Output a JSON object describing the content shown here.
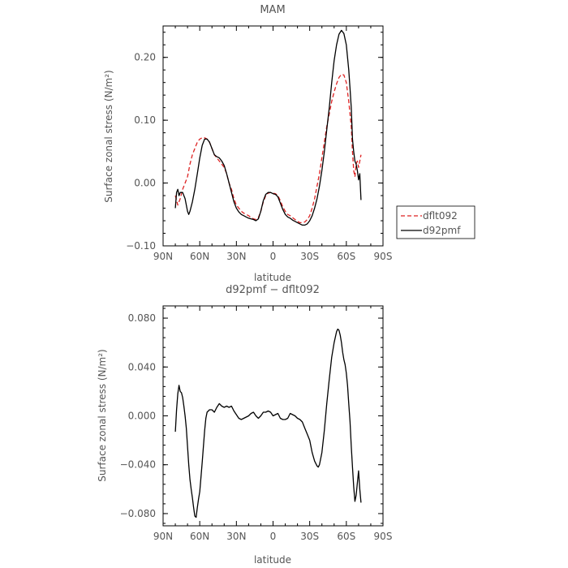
{
  "chart_data": [
    {
      "type": "line",
      "title": "MAM",
      "xlabel": "latitude",
      "ylabel": "Surface zonal stress (N/m²)",
      "x_ticks": [
        90,
        60,
        30,
        0,
        -30,
        -60,
        -90
      ],
      "x_tick_labels": [
        "90N",
        "60N",
        "30N",
        "0",
        "30S",
        "60S",
        "90S"
      ],
      "xlim": [
        90,
        -90
      ],
      "y_ticks": [
        -0.1,
        0.0,
        0.1,
        0.2
      ],
      "y_tick_labels": [
        "−0.10",
        "0.00",
        "0.10",
        "0.20"
      ],
      "ylim": [
        -0.1,
        0.25
      ],
      "legend_position": "right",
      "grid": false,
      "series": [
        {
          "name": "dflt092",
          "color": "#dd2222",
          "dash": "dashed",
          "points": [
            [
              80,
              -0.02
            ],
            [
              78,
              -0.035
            ],
            [
              76,
              -0.025
            ],
            [
              74,
              -0.01
            ],
            [
              72,
              0.0
            ],
            [
              70,
              0.01
            ],
            [
              68,
              0.03
            ],
            [
              66,
              0.045
            ],
            [
              64,
              0.055
            ],
            [
              62,
              0.065
            ],
            [
              60,
              0.07
            ],
            [
              58,
              0.072
            ],
            [
              56,
              0.072
            ],
            [
              54,
              0.07
            ],
            [
              52,
              0.065
            ],
            [
              50,
              0.055
            ],
            [
              48,
              0.045
            ],
            [
              46,
              0.04
            ],
            [
              44,
              0.035
            ],
            [
              42,
              0.03
            ],
            [
              40,
              0.025
            ],
            [
              38,
              0.015
            ],
            [
              36,
              0.0
            ],
            [
              34,
              -0.01
            ],
            [
              32,
              -0.025
            ],
            [
              30,
              -0.035
            ],
            [
              28,
              -0.04
            ],
            [
              26,
              -0.045
            ],
            [
              24,
              -0.048
            ],
            [
              22,
              -0.05
            ],
            [
              20,
              -0.052
            ],
            [
              18,
              -0.055
            ],
            [
              16,
              -0.057
            ],
            [
              14,
              -0.058
            ],
            [
              12,
              -0.055
            ],
            [
              10,
              -0.045
            ],
            [
              8,
              -0.03
            ],
            [
              6,
              -0.02
            ],
            [
              4,
              -0.016
            ],
            [
              2,
              -0.015
            ],
            [
              0,
              -0.016
            ],
            [
              -2,
              -0.017
            ],
            [
              -4,
              -0.02
            ],
            [
              -6,
              -0.028
            ],
            [
              -8,
              -0.038
            ],
            [
              -10,
              -0.045
            ],
            [
              -12,
              -0.05
            ],
            [
              -14,
              -0.052
            ],
            [
              -16,
              -0.055
            ],
            [
              -18,
              -0.058
            ],
            [
              -20,
              -0.061
            ],
            [
              -22,
              -0.063
            ],
            [
              -24,
              -0.063
            ],
            [
              -26,
              -0.062
            ],
            [
              -28,
              -0.058
            ],
            [
              -30,
              -0.052
            ],
            [
              -32,
              -0.04
            ],
            [
              -34,
              -0.025
            ],
            [
              -36,
              -0.005
            ],
            [
              -38,
              0.015
            ],
            [
              -40,
              0.04
            ],
            [
              -42,
              0.065
            ],
            [
              -44,
              0.09
            ],
            [
              -46,
              0.11
            ],
            [
              -48,
              0.13
            ],
            [
              -50,
              0.145
            ],
            [
              -52,
              0.158
            ],
            [
              -54,
              0.168
            ],
            [
              -56,
              0.173
            ],
            [
              -58,
              0.172
            ],
            [
              -60,
              0.16
            ],
            [
              -62,
              0.13
            ],
            [
              -64,
              0.09
            ],
            [
              -65,
              0.05
            ],
            [
              -66,
              0.02
            ],
            [
              -67,
              0.01
            ],
            [
              -68,
              0.03
            ],
            [
              -69,
              0.035
            ],
            [
              -70,
              0.025
            ],
            [
              -71,
              0.035
            ],
            [
              -72,
              0.045
            ]
          ]
        },
        {
          "name": "d92pmf",
          "color": "#000000",
          "dash": "solid",
          "points": [
            [
              80,
              -0.04
            ],
            [
              79,
              -0.015
            ],
            [
              78,
              -0.01
            ],
            [
              77,
              -0.02
            ],
            [
              76,
              -0.015
            ],
            [
              74,
              -0.015
            ],
            [
              72,
              -0.025
            ],
            [
              70,
              -0.045
            ],
            [
              69,
              -0.05
            ],
            [
              68,
              -0.045
            ],
            [
              66,
              -0.03
            ],
            [
              64,
              -0.01
            ],
            [
              62,
              0.015
            ],
            [
              60,
              0.04
            ],
            [
              58,
              0.06
            ],
            [
              56,
              0.07
            ],
            [
              54,
              0.07
            ],
            [
              52,
              0.065
            ],
            [
              50,
              0.055
            ],
            [
              48,
              0.045
            ],
            [
              46,
              0.042
            ],
            [
              44,
              0.04
            ],
            [
              42,
              0.035
            ],
            [
              40,
              0.028
            ],
            [
              38,
              0.015
            ],
            [
              36,
              0.0
            ],
            [
              34,
              -0.015
            ],
            [
              32,
              -0.03
            ],
            [
              30,
              -0.04
            ],
            [
              28,
              -0.046
            ],
            [
              26,
              -0.05
            ],
            [
              24,
              -0.052
            ],
            [
              22,
              -0.054
            ],
            [
              20,
              -0.056
            ],
            [
              18,
              -0.057
            ],
            [
              16,
              -0.058
            ],
            [
              14,
              -0.06
            ],
            [
              12,
              -0.057
            ],
            [
              10,
              -0.045
            ],
            [
              8,
              -0.028
            ],
            [
              6,
              -0.018
            ],
            [
              4,
              -0.015
            ],
            [
              2,
              -0.015
            ],
            [
              0,
              -0.017
            ],
            [
              -2,
              -0.018
            ],
            [
              -4,
              -0.022
            ],
            [
              -6,
              -0.032
            ],
            [
              -8,
              -0.042
            ],
            [
              -10,
              -0.05
            ],
            [
              -12,
              -0.054
            ],
            [
              -14,
              -0.056
            ],
            [
              -16,
              -0.059
            ],
            [
              -18,
              -0.061
            ],
            [
              -20,
              -0.063
            ],
            [
              -22,
              -0.065
            ],
            [
              -24,
              -0.067
            ],
            [
              -26,
              -0.067
            ],
            [
              -28,
              -0.065
            ],
            [
              -30,
              -0.06
            ],
            [
              -32,
              -0.052
            ],
            [
              -34,
              -0.04
            ],
            [
              -36,
              -0.025
            ],
            [
              -38,
              -0.005
            ],
            [
              -40,
              0.02
            ],
            [
              -42,
              0.05
            ],
            [
              -44,
              0.085
            ],
            [
              -46,
              0.12
            ],
            [
              -48,
              0.16
            ],
            [
              -50,
              0.195
            ],
            [
              -52,
              0.22
            ],
            [
              -54,
              0.237
            ],
            [
              -56,
              0.243
            ],
            [
              -58,
              0.238
            ],
            [
              -60,
              0.22
            ],
            [
              -62,
              0.18
            ],
            [
              -63,
              0.15
            ],
            [
              -64,
              0.12
            ],
            [
              -65,
              0.07
            ],
            [
              -66,
              0.05
            ],
            [
              -67,
              0.035
            ],
            [
              -68,
              0.03
            ],
            [
              -69,
              0.02
            ],
            [
              -70,
              0.005
            ],
            [
              -71,
              0.015
            ],
            [
              -72,
              -0.027
            ]
          ]
        }
      ]
    },
    {
      "type": "line",
      "title": "d92pmf − dflt092",
      "xlabel": "latitude",
      "ylabel": "Surface zonal stress (N/m²)",
      "x_ticks": [
        90,
        60,
        30,
        0,
        -30,
        -60,
        -90
      ],
      "x_tick_labels": [
        "90N",
        "60N",
        "30N",
        "0",
        "30S",
        "60S",
        "90S"
      ],
      "xlim": [
        90,
        -90
      ],
      "y_ticks": [
        -0.08,
        -0.04,
        0.0,
        0.04,
        0.08
      ],
      "y_tick_labels": [
        "−0.080",
        "−0.040",
        "0.000",
        "0.040",
        "0.080"
      ],
      "ylim": [
        -0.09,
        0.09
      ],
      "grid": false,
      "series": [
        {
          "color": "#000000",
          "dash": "solid",
          "points": [
            [
              80,
              -0.013
            ],
            [
              79,
              0.005
            ],
            [
              78,
              0.018
            ],
            [
              77,
              0.025
            ],
            [
              76,
              0.02
            ],
            [
              75,
              0.019
            ],
            [
              74,
              0.015
            ],
            [
              73,
              0.008
            ],
            [
              72,
              0.0
            ],
            [
              71,
              -0.01
            ],
            [
              70,
              -0.025
            ],
            [
              69,
              -0.04
            ],
            [
              68,
              -0.052
            ],
            [
              67,
              -0.06
            ],
            [
              66,
              -0.067
            ],
            [
              65,
              -0.075
            ],
            [
              64,
              -0.082
            ],
            [
              63,
              -0.083
            ],
            [
              62,
              -0.075
            ],
            [
              61,
              -0.068
            ],
            [
              60,
              -0.062
            ],
            [
              59,
              -0.05
            ],
            [
              58,
              -0.038
            ],
            [
              57,
              -0.025
            ],
            [
              56,
              -0.012
            ],
            [
              55,
              -0.002
            ],
            [
              54,
              0.003
            ],
            [
              52,
              0.005
            ],
            [
              50,
              0.005
            ],
            [
              48,
              0.003
            ],
            [
              46,
              0.007
            ],
            [
              44,
              0.01
            ],
            [
              42,
              0.008
            ],
            [
              40,
              0.007
            ],
            [
              38,
              0.008
            ],
            [
              36,
              0.007
            ],
            [
              34,
              0.008
            ],
            [
              32,
              0.004
            ],
            [
              30,
              0.001
            ],
            [
              28,
              -0.002
            ],
            [
              26,
              -0.003
            ],
            [
              24,
              -0.002
            ],
            [
              22,
              -0.001
            ],
            [
              20,
              0.0
            ],
            [
              18,
              0.002
            ],
            [
              16,
              0.003
            ],
            [
              14,
              0.0
            ],
            [
              12,
              -0.002
            ],
            [
              10,
              0.0
            ],
            [
              8,
              0.003
            ],
            [
              6,
              0.003
            ],
            [
              4,
              0.004
            ],
            [
              2,
              0.003
            ],
            [
              0,
              0.0
            ],
            [
              -2,
              0.001
            ],
            [
              -4,
              0.002
            ],
            [
              -6,
              -0.002
            ],
            [
              -8,
              -0.003
            ],
            [
              -10,
              -0.003
            ],
            [
              -12,
              -0.002
            ],
            [
              -14,
              0.002
            ],
            [
              -16,
              0.001
            ],
            [
              -18,
              0.0
            ],
            [
              -20,
              -0.002
            ],
            [
              -22,
              -0.003
            ],
            [
              -24,
              -0.005
            ],
            [
              -26,
              -0.01
            ],
            [
              -28,
              -0.015
            ],
            [
              -30,
              -0.02
            ],
            [
              -32,
              -0.03
            ],
            [
              -34,
              -0.037
            ],
            [
              -36,
              -0.041
            ],
            [
              -37,
              -0.042
            ],
            [
              -38,
              -0.04
            ],
            [
              -40,
              -0.03
            ],
            [
              -42,
              -0.012
            ],
            [
              -44,
              0.01
            ],
            [
              -46,
              0.03
            ],
            [
              -48,
              0.048
            ],
            [
              -50,
              0.06
            ],
            [
              -52,
              0.069
            ],
            [
              -53,
              0.071
            ],
            [
              -54,
              0.07
            ],
            [
              -55,
              0.066
            ],
            [
              -56,
              0.06
            ],
            [
              -57,
              0.052
            ],
            [
              -58,
              0.046
            ],
            [
              -59,
              0.042
            ],
            [
              -60,
              0.035
            ],
            [
              -61,
              0.025
            ],
            [
              -62,
              0.01
            ],
            [
              -63,
              -0.005
            ],
            [
              -64,
              -0.025
            ],
            [
              -65,
              -0.042
            ],
            [
              -66,
              -0.058
            ],
            [
              -67,
              -0.07
            ],
            [
              -68,
              -0.065
            ],
            [
              -69,
              -0.055
            ],
            [
              -70,
              -0.045
            ],
            [
              -71,
              -0.06
            ],
            [
              -72,
              -0.071
            ]
          ]
        }
      ]
    }
  ]
}
